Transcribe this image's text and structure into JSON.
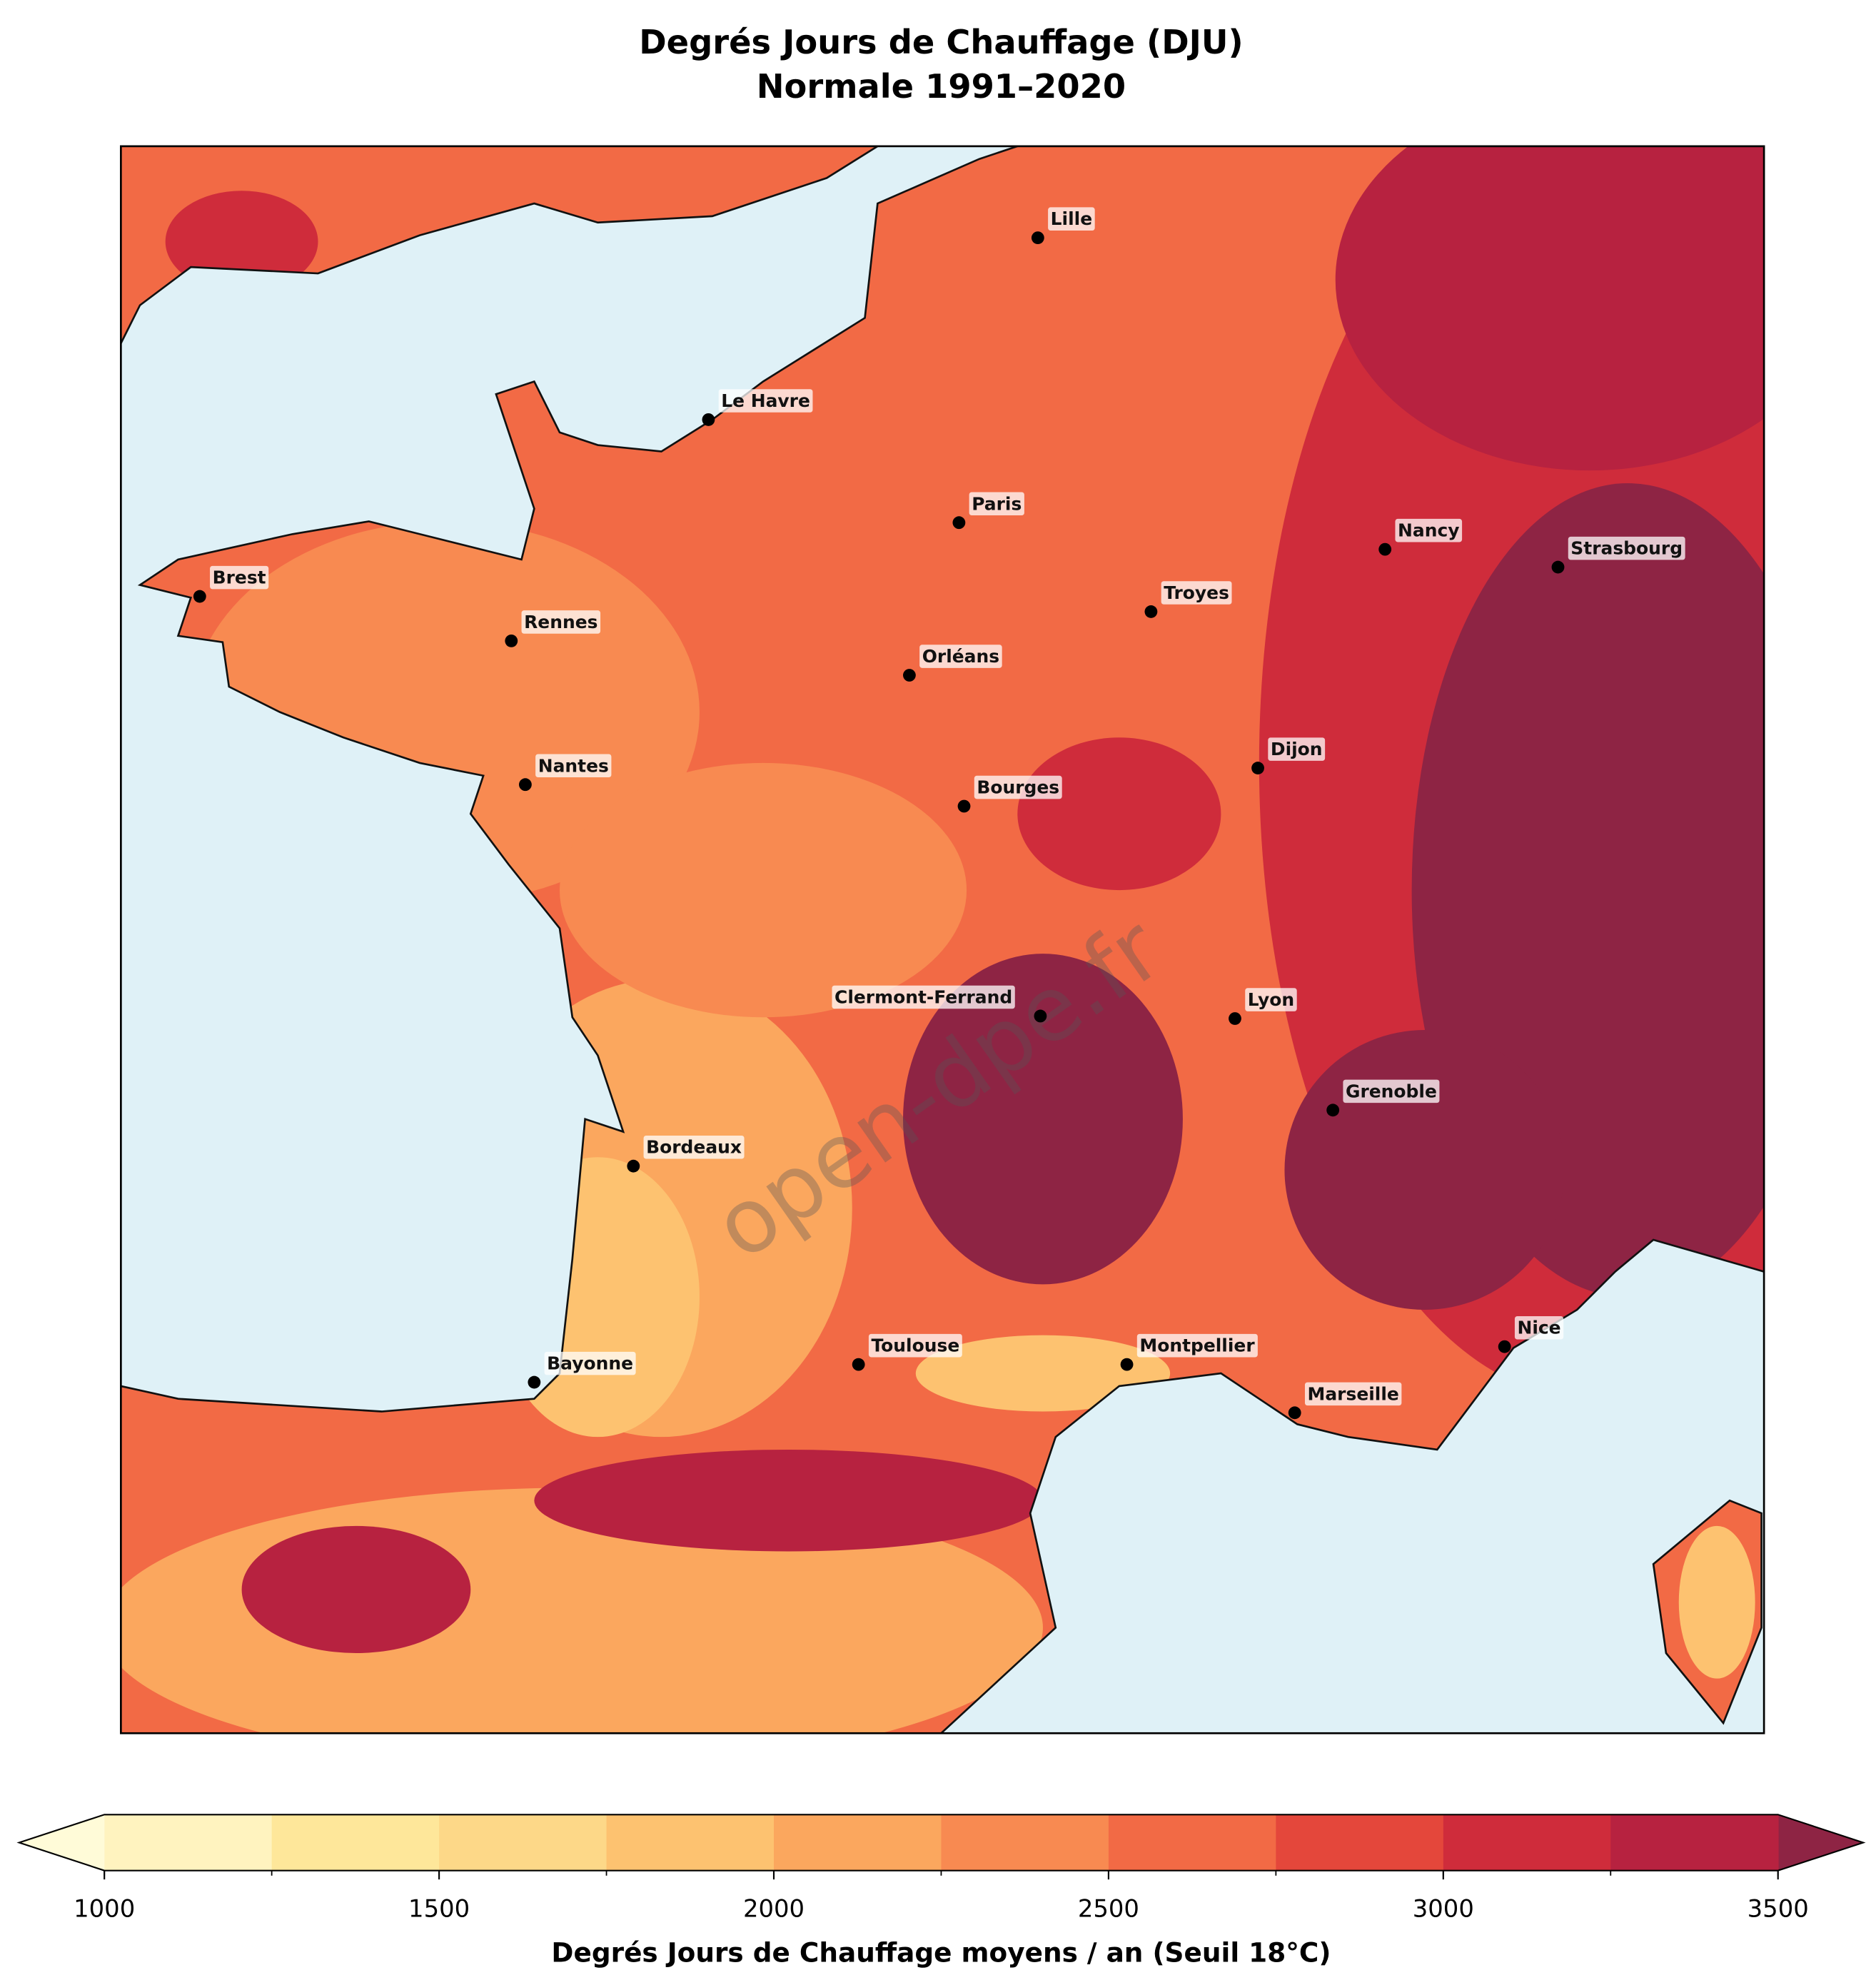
{
  "chart_data": {
    "type": "map",
    "title": "Degrés Jours de Chauffage (DJU)",
    "subtitle": "Normale 1991–2020",
    "watermark": "open-dpe.fr",
    "cities": [
      "Lille",
      "Le Havre",
      "Paris",
      "Brest",
      "Rennes",
      "Orléans",
      "Troyes",
      "Nancy",
      "Strasbourg",
      "Dijon",
      "Nantes",
      "Bourges",
      "Clermont-Ferrand",
      "Lyon",
      "Grenoble",
      "Bordeaux",
      "Bayonne",
      "Toulouse",
      "Montpellier",
      "Marseille",
      "Nice"
    ],
    "colorbar": {
      "label": "Degrés Jours de Chauffage moyens / an (Seuil 18°C)",
      "levels": [
        1000,
        1250,
        1500,
        1750,
        2000,
        2250,
        2500,
        2750,
        3000,
        3250,
        3500
      ],
      "colors": [
        "#fff3bf",
        "#fee79a",
        "#fdd888",
        "#fdc270",
        "#fba75e",
        "#f88a51",
        "#f26a45",
        "#e4473b",
        "#cf2c3b",
        "#b72240"
      ],
      "under_color": "#fffbd8",
      "over_color": "#8e2444",
      "ticks": [
        1000,
        1500,
        2000,
        2500,
        3000,
        3500
      ]
    }
  }
}
